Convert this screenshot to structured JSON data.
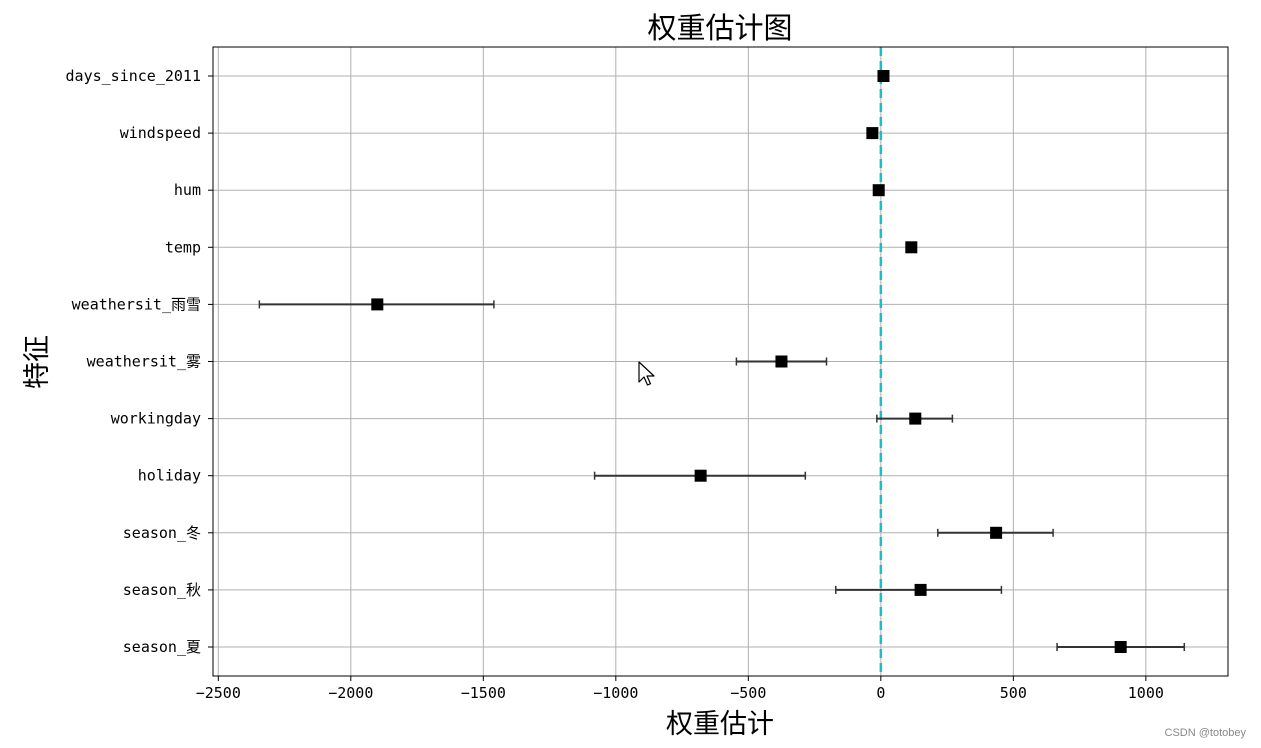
{
  "chart_data": {
    "type": "scatter",
    "title": "权重估计图",
    "xlabel": "权重估计",
    "ylabel": "特征",
    "xlim": [
      -2520,
      1310
    ],
    "x_ticks": [
      -2500,
      -2000,
      -1500,
      -1000,
      -500,
      0,
      500,
      1000
    ],
    "x_tick_labels": [
      "−2500",
      "−2000",
      "−1500",
      "−1000",
      "−500",
      "0",
      "500",
      "1000"
    ],
    "grid": true,
    "reference_line": {
      "x": 0,
      "style": "dashed",
      "color": "#17becf"
    },
    "marker_color": "#000000",
    "errorbar_color": "#333333",
    "features": [
      {
        "label": "days_since_2011",
        "estimate": 10,
        "lo": null,
        "hi": null
      },
      {
        "label": "windspeed",
        "estimate": -32,
        "lo": null,
        "hi": null
      },
      {
        "label": "hum",
        "estimate": -8,
        "lo": null,
        "hi": null
      },
      {
        "label": "temp",
        "estimate": 115,
        "lo": null,
        "hi": null
      },
      {
        "label": "weathersit_雨雪",
        "estimate": -1900,
        "lo": -2345,
        "hi": -1460
      },
      {
        "label": "weathersit_雾",
        "estimate": -375,
        "lo": -545,
        "hi": -205
      },
      {
        "label": "workingday",
        "estimate": 130,
        "lo": -15,
        "hi": 270
      },
      {
        "label": "holiday",
        "estimate": -680,
        "lo": -1080,
        "hi": -285
      },
      {
        "label": "season_冬",
        "estimate": 435,
        "lo": 215,
        "hi": 650
      },
      {
        "label": "season_秋",
        "estimate": 150,
        "lo": -170,
        "hi": 455
      },
      {
        "label": "season_夏",
        "estimate": 905,
        "lo": 665,
        "hi": 1145
      }
    ]
  },
  "watermark": "CSDN @totobey",
  "cursor_icon": "mouse-pointer-icon"
}
